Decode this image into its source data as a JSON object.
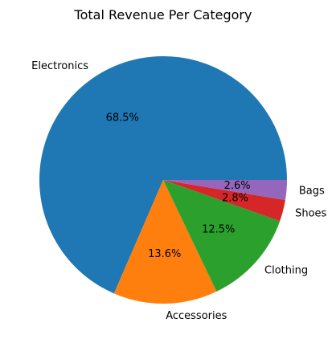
{
  "chart_data": {
    "type": "pie",
    "title": "Total Revenue Per Category",
    "categories": [
      "Electronics",
      "Accessories",
      "Clothing",
      "Shoes",
      "Bags"
    ],
    "values": [
      68.5,
      13.6,
      12.5,
      2.8,
      2.6
    ],
    "percent_labels": [
      "68.5%",
      "13.6%",
      "12.5%",
      "2.8%",
      "2.6%"
    ],
    "colors": [
      "#1f77b4",
      "#ff7f0e",
      "#2ca02c",
      "#d62728",
      "#9467bd"
    ],
    "start_angle_deg": 0,
    "direction": "counterclockwise"
  }
}
